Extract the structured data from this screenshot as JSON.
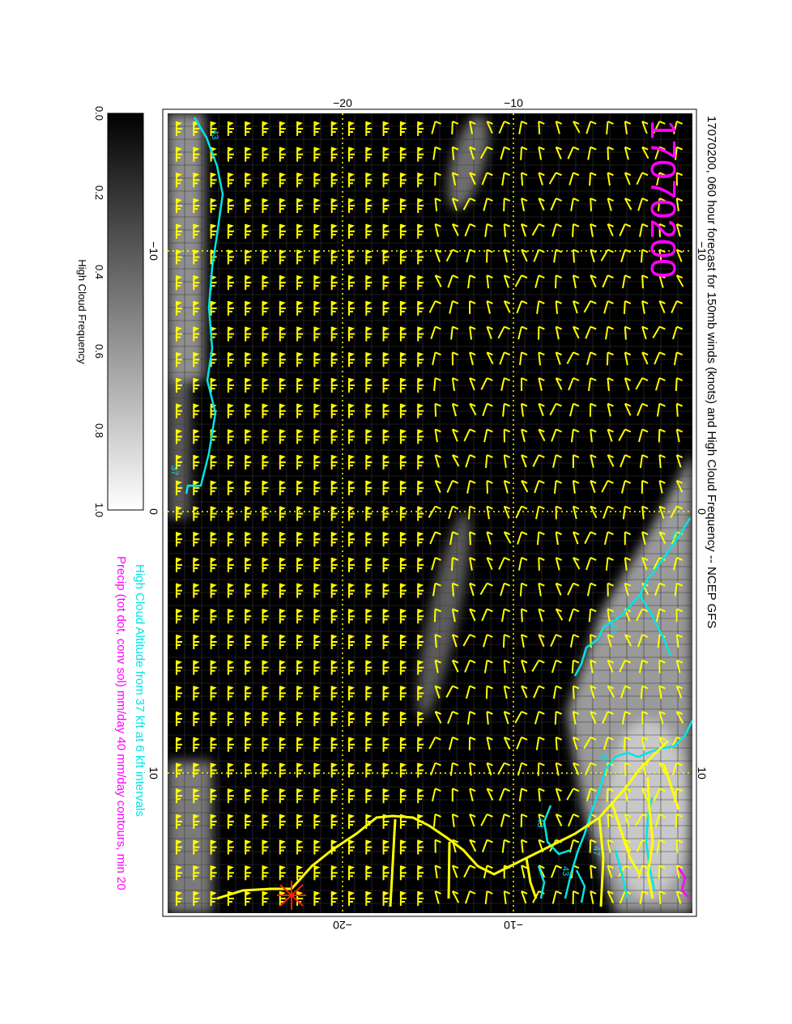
{
  "title": "17070200, 060 hour forecast for 150mb winds (knots) and High Cloud Frequency -- NCEP GFS",
  "stamp": "17070200",
  "legend": {
    "line1": "High Cloud Altitude from 37 kft at 6 kft intervals",
    "line2": "Precip (tot dot, conv sol) mm/day 40 mm/day contours, min 20"
  },
  "colorbar": {
    "label": "High Cloud Frequency",
    "ticks": [
      "0.0",
      "0.2",
      "0.4",
      "0.6",
      "0.8",
      "1.0"
    ]
  },
  "axes": {
    "top_labels": [
      "−20",
      "−10"
    ],
    "bottom_labels": [
      "−20",
      "−10"
    ],
    "left_labels": [
      "−10",
      "0",
      "10"
    ],
    "right_labels": [
      "−10",
      "0",
      "10"
    ]
  },
  "contour_labels": [
    "43",
    "37",
    "43",
    "43",
    "43",
    "43",
    "43",
    "47"
  ],
  "colors": {
    "map_background": "#000000",
    "cloud_shading": "#9a9a9a",
    "wind_barbs": "#ffff00",
    "coastline": "#ffff00",
    "graticule": "#ffff00",
    "cloud_altitude_contour": "#00e5e5",
    "precip": "#ff00ff",
    "title": "#000000",
    "stamp": "#ff00ff",
    "legend_line1": "#00e5e5",
    "legend_line2": "#ff00ff",
    "marker": "#ff2200"
  }
}
